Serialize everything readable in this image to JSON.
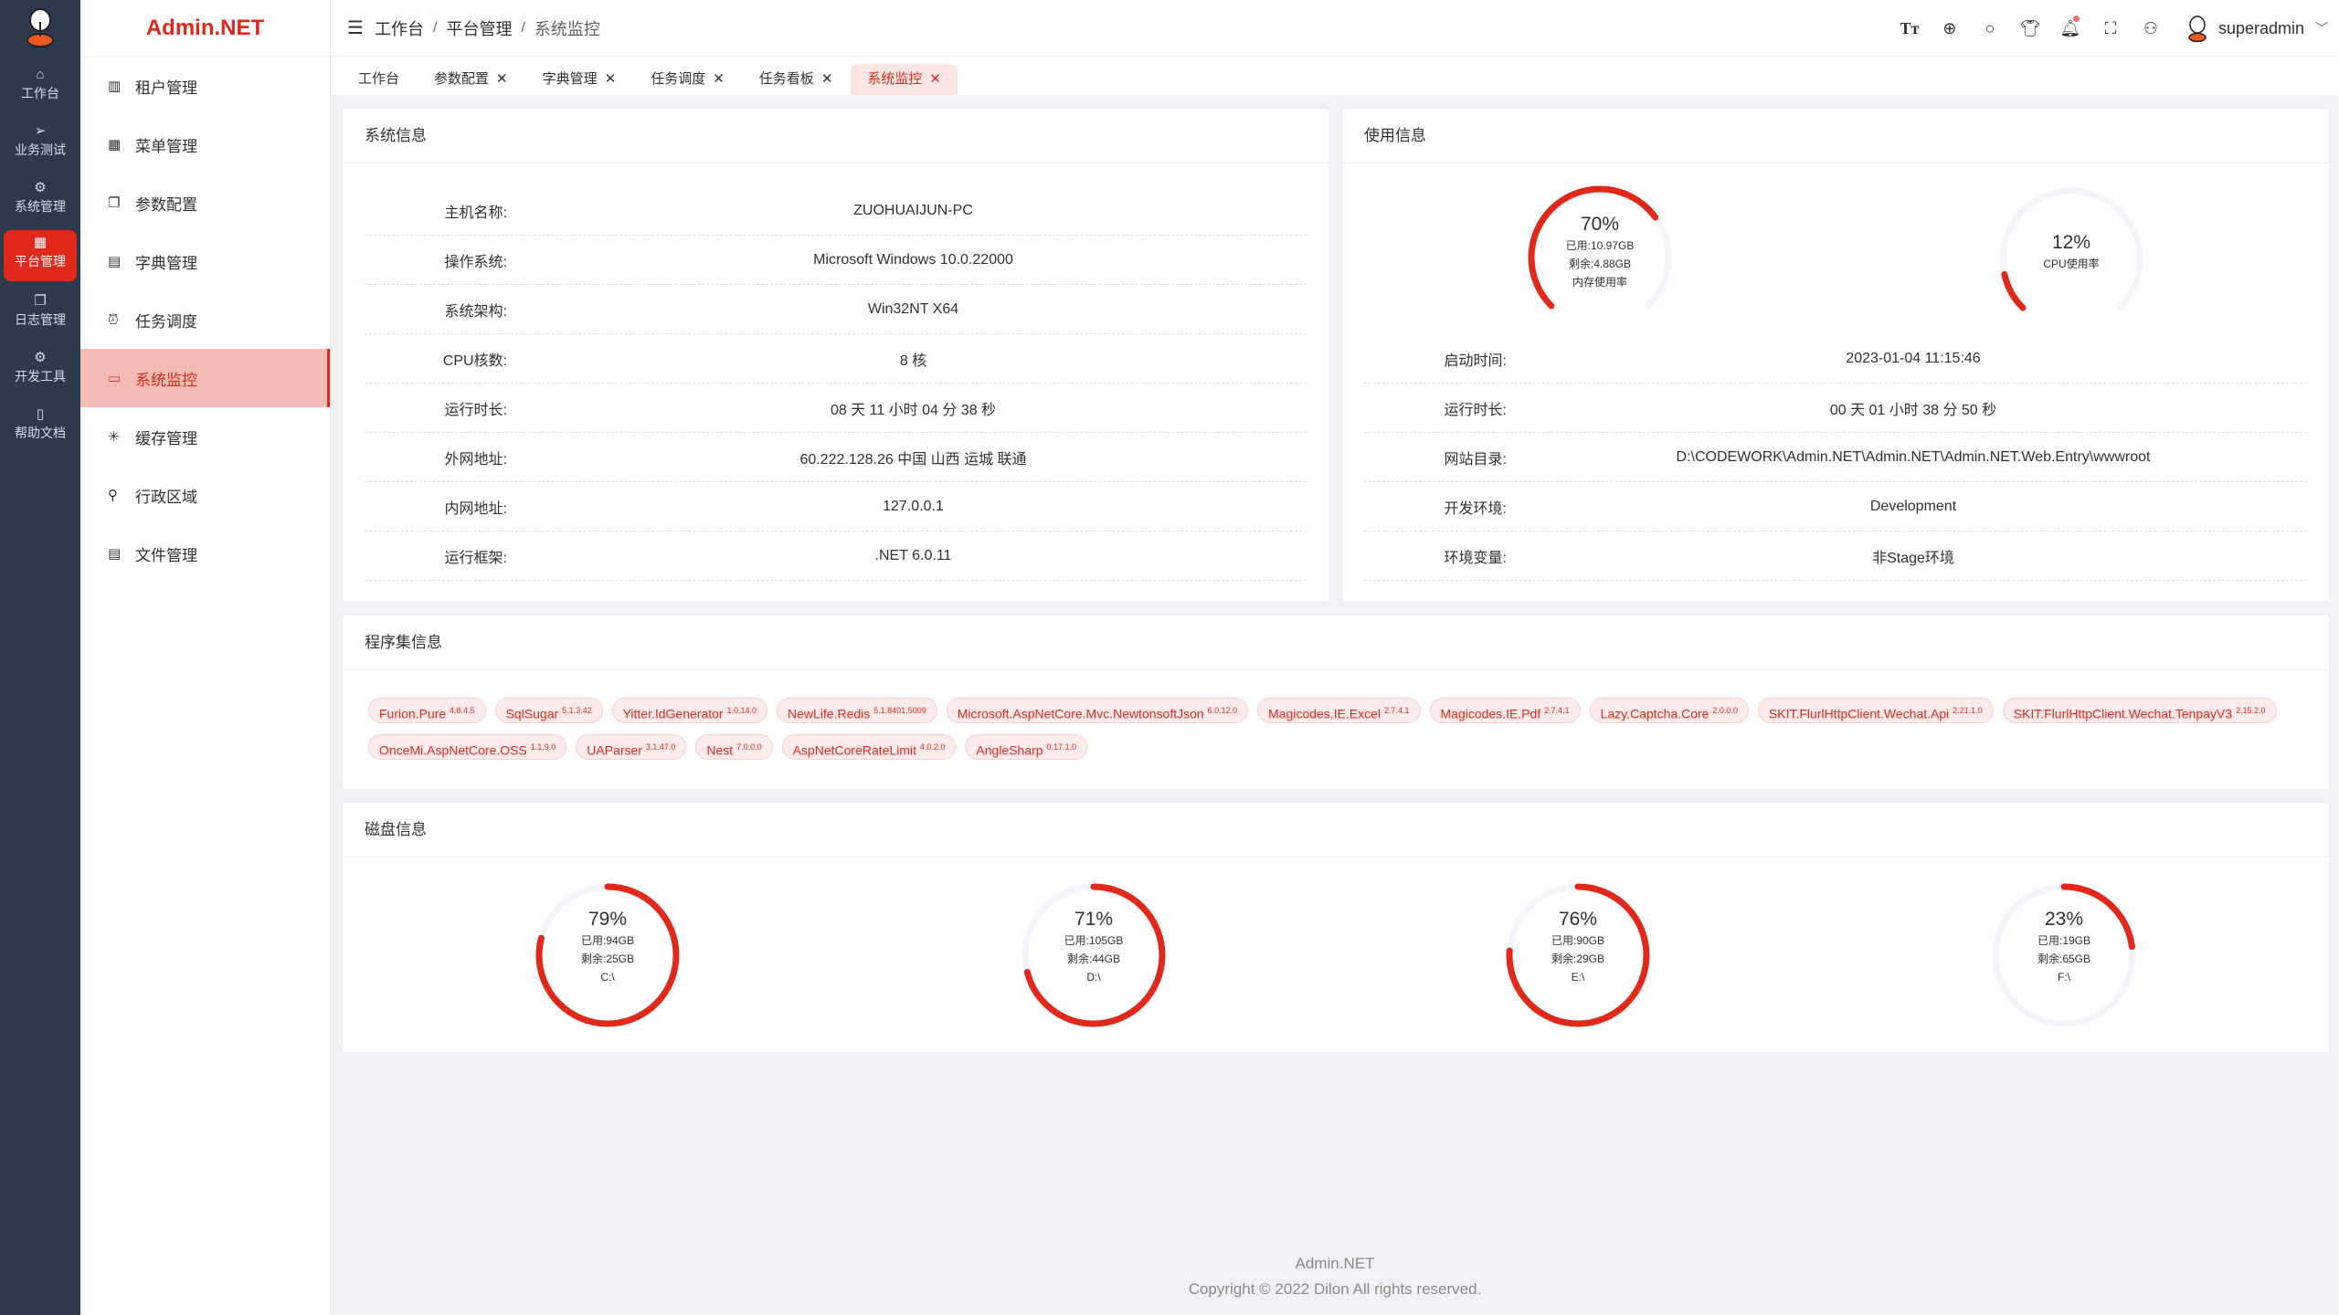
{
  "brand": "Admin.NET",
  "rail": [
    {
      "label": "工作台",
      "icon": "home-icon"
    },
    {
      "label": "业务测试",
      "icon": "send-icon"
    },
    {
      "label": "系统管理",
      "icon": "gear-icon"
    },
    {
      "label": "平台管理",
      "icon": "grid-icon",
      "active": true
    },
    {
      "label": "日志管理",
      "icon": "copy-icon"
    },
    {
      "label": "开发工具",
      "icon": "chip-icon"
    },
    {
      "label": "帮助文档",
      "icon": "notebook-icon"
    }
  ],
  "menu": [
    {
      "label": "租户管理",
      "icon": "office-icon"
    },
    {
      "label": "菜单管理",
      "icon": "grid-icon"
    },
    {
      "label": "参数配置",
      "icon": "copy-icon"
    },
    {
      "label": "字典管理",
      "icon": "book-icon"
    },
    {
      "label": "任务调度",
      "icon": "alarm-clock-icon"
    },
    {
      "label": "系统监控",
      "icon": "monitor-icon",
      "active": true
    },
    {
      "label": "缓存管理",
      "icon": "loading-icon"
    },
    {
      "label": "行政区域",
      "icon": "location-icon"
    },
    {
      "label": "文件管理",
      "icon": "document-icon"
    }
  ],
  "breadcrumb": [
    "工作台",
    "平台管理",
    "系统监控"
  ],
  "user": {
    "name": "superadmin"
  },
  "tabs": [
    {
      "label": "工作台",
      "closable": false
    },
    {
      "label": "参数配置",
      "closable": true
    },
    {
      "label": "字典管理",
      "closable": true
    },
    {
      "label": "任务调度",
      "closable": true
    },
    {
      "label": "任务看板",
      "closable": true
    },
    {
      "label": "系统监控",
      "closable": true,
      "active": true
    }
  ],
  "sysinfo": {
    "title": "系统信息",
    "rows": [
      [
        "主机名称:",
        "ZUOHUAIJUN-PC"
      ],
      [
        "操作系统:",
        "Microsoft Windows 10.0.22000"
      ],
      [
        "系统架构:",
        "Win32NT X64"
      ],
      [
        "CPU核数:",
        "8 核"
      ],
      [
        "运行时长:",
        "08 天 11 小时 04 分 38 秒"
      ],
      [
        "外网地址:",
        "60.222.128.26 中国 山西 运城 联通"
      ],
      [
        "内网地址:",
        "127.0.0.1"
      ],
      [
        "运行框架:",
        ".NET 6.0.11"
      ]
    ]
  },
  "usage": {
    "title": "使用信息",
    "memory": {
      "percent": 70,
      "lines": [
        "已用:10.97GB",
        "剩余:4.88GB",
        "内存使用率"
      ]
    },
    "cpu": {
      "percent": 12,
      "lines": [
        "CPU使用率"
      ]
    },
    "rows": [
      [
        "启动时间:",
        "2023-01-04 11:15:46"
      ],
      [
        "运行时长:",
        "00 天 01 小时 38 分 50 秒"
      ],
      [
        "网站目录:",
        "D:\\CODEWORK\\Admin.NET\\Admin.NET\\Admin.NET.Web.Entry\\wwwroot"
      ],
      [
        "开发环境:",
        "Development"
      ],
      [
        "环境变量:",
        "非Stage环境"
      ]
    ]
  },
  "assemblies": {
    "title": "程序集信息",
    "items": [
      [
        "Furion.Pure",
        "4.8.4.5"
      ],
      [
        "SqlSugar",
        "5.1.3.42"
      ],
      [
        "Yitter.IdGenerator",
        "1.0.14.0"
      ],
      [
        "NewLife.Redis",
        "5.1.8401.5009"
      ],
      [
        "Microsoft.AspNetCore.Mvc.NewtonsoftJson",
        "6.0.12.0"
      ],
      [
        "Magicodes.IE.Excel",
        "2.7.4.1"
      ],
      [
        "Magicodes.IE.Pdf",
        "2.7.4.1"
      ],
      [
        "Lazy.Captcha.Core",
        "2.0.0.0"
      ],
      [
        "SKIT.FlurlHttpClient.Wechat.Api",
        "2.21.1.0"
      ],
      [
        "SKIT.FlurlHttpClient.Wechat.TenpayV3",
        "2.15.2.0"
      ],
      [
        "OnceMi.AspNetCore.OSS",
        "1.1.9.0"
      ],
      [
        "UAParser",
        "3.1.47.0"
      ],
      [
        "Nest",
        "7.0.0.0"
      ],
      [
        "AspNetCoreRateLimit",
        "4.0.2.0"
      ],
      [
        "AngleSharp",
        "0.17.1.0"
      ]
    ]
  },
  "disks": {
    "title": "磁盘信息",
    "items": [
      {
        "percent": 79,
        "used": "已用:94GB",
        "free": "剩余:25GB",
        "name": "C:\\"
      },
      {
        "percent": 71,
        "used": "已用:105GB",
        "free": "剩余:44GB",
        "name": "D:\\"
      },
      {
        "percent": 76,
        "used": "已用:90GB",
        "free": "剩余:29GB",
        "name": "E:\\"
      },
      {
        "percent": 23,
        "used": "已用:19GB",
        "free": "剩余:65GB",
        "name": "F:\\"
      }
    ]
  },
  "colors": {
    "accent": "#e0291b",
    "track": "#f3f5fa",
    "rail": "#2d3a4b"
  },
  "footer": {
    "line1": "Admin.NET",
    "line2": "Copyright © 2022 Dilon All rights reserved."
  }
}
